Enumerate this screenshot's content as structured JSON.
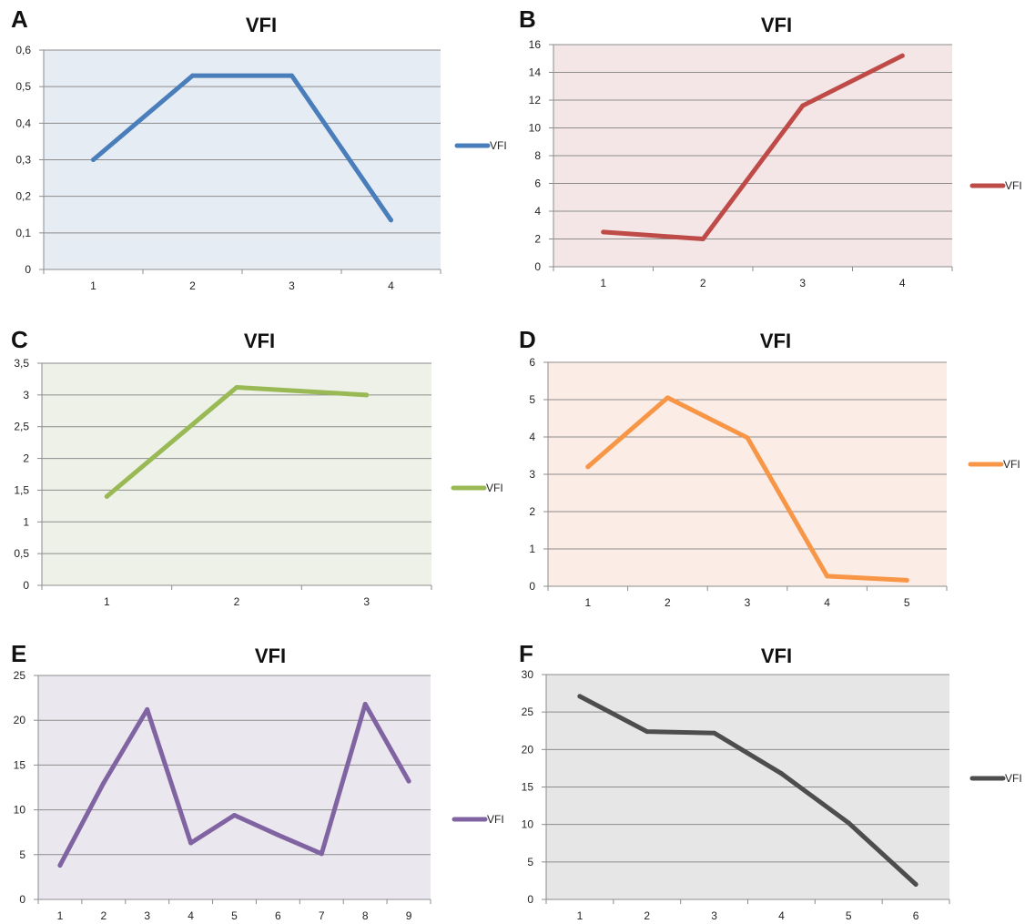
{
  "chart_data": [
    {
      "panel_label": "A",
      "type": "line",
      "title": "VFI",
      "xlabel": "",
      "ylabel": "",
      "categories": [
        "1",
        "2",
        "3",
        "4"
      ],
      "ylim": [
        0,
        0.6
      ],
      "y_ticks": [
        "0",
        "0,1",
        "0,2",
        "0,3",
        "0,4",
        "0,5",
        "0,6"
      ],
      "grid": true,
      "legend": "right",
      "series": [
        {
          "name": "VFI",
          "color": "#4a7ebb",
          "values": [
            0.3,
            0.53,
            0.53,
            0.135
          ]
        }
      ],
      "plot_bg": "#e6ecf4"
    },
    {
      "panel_label": "B",
      "type": "line",
      "title": "VFI",
      "xlabel": "",
      "ylabel": "",
      "categories": [
        "1",
        "2",
        "3",
        "4"
      ],
      "ylim": [
        0,
        16
      ],
      "y_ticks": [
        "0",
        "2",
        "4",
        "6",
        "8",
        "10",
        "12",
        "14",
        "16"
      ],
      "grid": true,
      "legend": "right",
      "series": [
        {
          "name": "VFI",
          "color": "#be4b48",
          "values": [
            2.5,
            2.0,
            11.6,
            15.2
          ]
        }
      ],
      "plot_bg": "#f4e6e6"
    },
    {
      "panel_label": "C",
      "type": "line",
      "title": "VFI",
      "xlabel": "",
      "ylabel": "",
      "categories": [
        "1",
        "2",
        "3"
      ],
      "ylim": [
        0,
        3.5
      ],
      "y_ticks": [
        "0",
        "0,5",
        "1",
        "1,5",
        "2",
        "2,5",
        "3",
        "3,5"
      ],
      "grid": true,
      "legend": "right",
      "series": [
        {
          "name": "VFI",
          "color": "#98b954",
          "values": [
            1.4,
            3.12,
            3.0
          ]
        }
      ],
      "plot_bg": "#eef1e8"
    },
    {
      "panel_label": "D",
      "type": "line",
      "title": "VFI",
      "xlabel": "",
      "ylabel": "",
      "categories": [
        "1",
        "2",
        "3",
        "4",
        "5"
      ],
      "ylim": [
        0,
        6
      ],
      "y_ticks": [
        "0",
        "1",
        "2",
        "3",
        "4",
        "5",
        "6"
      ],
      "grid": true,
      "legend": "right",
      "series": [
        {
          "name": "VFI",
          "color": "#f79646",
          "values": [
            3.2,
            5.05,
            3.98,
            0.27,
            0.16
          ]
        }
      ],
      "plot_bg": "#fcece6"
    },
    {
      "panel_label": "E",
      "type": "line",
      "title": "VFI",
      "xlabel": "",
      "ylabel": "",
      "categories": [
        "1",
        "2",
        "3",
        "4",
        "5",
        "6",
        "7",
        "8",
        "9"
      ],
      "ylim": [
        0,
        25
      ],
      "y_ticks": [
        "0",
        "5",
        "10",
        "15",
        "20",
        "25"
      ],
      "grid": true,
      "legend": "right",
      "series": [
        {
          "name": "VFI",
          "color": "#8064a2",
          "values": [
            3.8,
            13.0,
            21.2,
            6.3,
            9.4,
            7.2,
            5.1,
            21.8,
            13.2
          ]
        }
      ],
      "plot_bg": "#ebe7ef"
    },
    {
      "panel_label": "F",
      "type": "line",
      "title": "VFI",
      "xlabel": "",
      "ylabel": "",
      "categories": [
        "1",
        "2",
        "3",
        "4",
        "5",
        "6"
      ],
      "ylim": [
        0,
        30
      ],
      "y_ticks": [
        "0",
        "5",
        "10",
        "15",
        "20",
        "25",
        "30"
      ],
      "grid": true,
      "legend": "right",
      "series": [
        {
          "name": "VFI",
          "color": "#4d4d4d",
          "values": [
            27.1,
            22.4,
            22.2,
            16.8,
            10.2,
            2.0
          ]
        }
      ],
      "plot_bg": "#e6e6e6"
    }
  ]
}
